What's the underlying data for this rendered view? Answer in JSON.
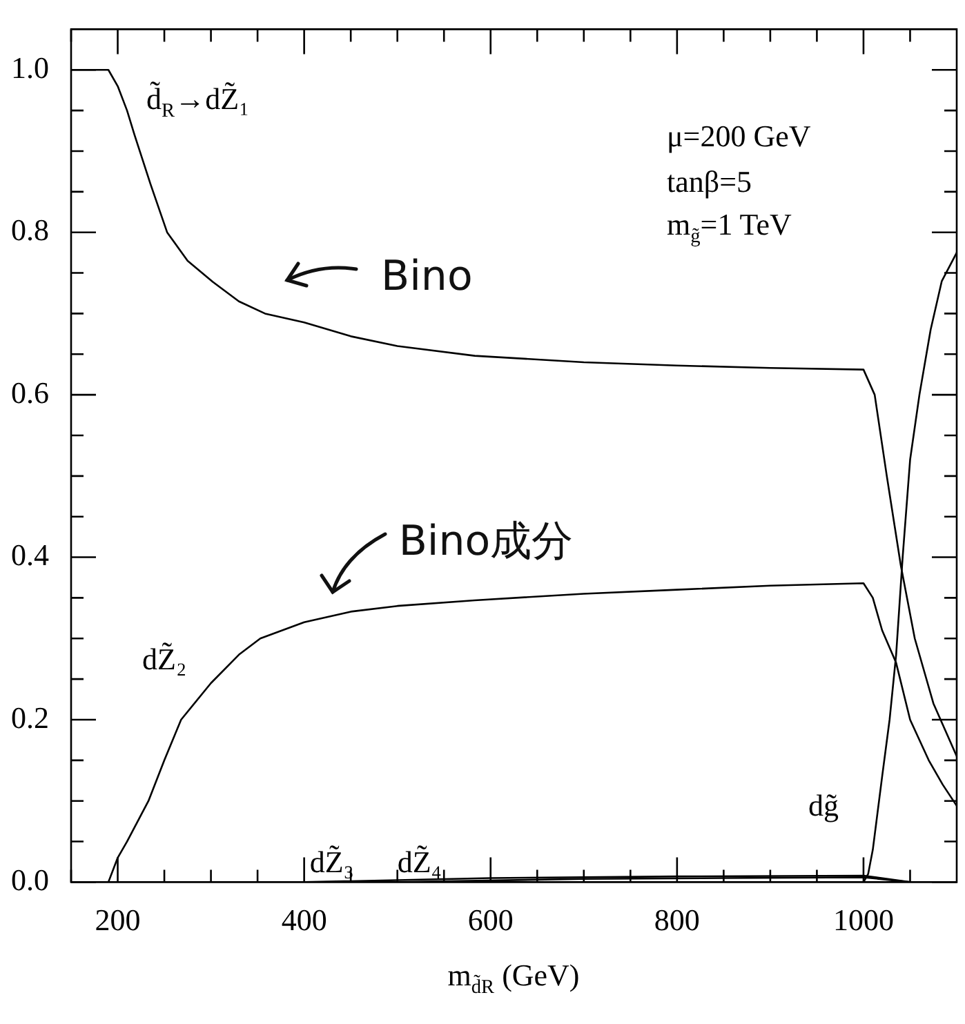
{
  "chart_data": {
    "type": "line",
    "xlabel": "m$_{d̃R}$ (GeV)",
    "xlim": [
      150,
      1100
    ],
    "ylim": [
      0,
      1.05
    ],
    "xticks": [
      {
        "value": 150,
        "label": null
      },
      200,
      {
        "value": 250,
        "label": null
      },
      {
        "value": 300,
        "label": null
      },
      {
        "value": 350,
        "label": null
      },
      400,
      {
        "value": 450,
        "label": null
      },
      {
        "value": 500,
        "label": null
      },
      {
        "value": 550,
        "label": null
      },
      600,
      {
        "value": 650,
        "label": null
      },
      {
        "value": 700,
        "label": null
      },
      {
        "value": 750,
        "label": null
      },
      800,
      {
        "value": 850,
        "label": null
      },
      {
        "value": 900,
        "label": null
      },
      {
        "value": 950,
        "label": null
      },
      1000,
      {
        "value": 1050,
        "label": null
      }
    ],
    "yticks": [
      {
        "value": 0,
        "label": "0.0"
      },
      {
        "value": 0.05,
        "label": null
      },
      {
        "value": 0.1,
        "label": null
      },
      {
        "value": 0.15,
        "label": null
      },
      0.2,
      {
        "value": 0.25,
        "label": null
      },
      {
        "value": 0.3,
        "label": null
      },
      {
        "value": 0.35,
        "label": null
      },
      0.4,
      {
        "value": 0.45,
        "label": null
      },
      {
        "value": 0.5,
        "label": null
      },
      {
        "value": 0.55,
        "label": null
      },
      0.6,
      {
        "value": 0.65,
        "label": null
      },
      {
        "value": 0.7,
        "label": null
      },
      {
        "value": 0.75,
        "label": null
      },
      0.8,
      {
        "value": 0.85,
        "label": null
      },
      {
        "value": 0.9,
        "label": null
      },
      {
        "value": 0.95,
        "label": null
      },
      {
        "value": 1,
        "label": "1.0"
      }
    ],
    "grid": false,
    "marker": "none",
    "line_style": "solid",
    "series": [
      {
        "name": "d̃$_{R}$→dZ̃₁",
        "color": "#000000",
        "x": [
          150,
          190,
          200,
          210,
          218,
          235,
          253,
          275,
          302,
          330,
          358,
          400,
          450,
          500,
          583,
          700,
          800,
          900,
          1000,
          1012,
          1025,
          1040,
          1055,
          1075,
          1100
        ],
        "values": [
          1,
          1,
          0.98,
          0.95,
          0.92,
          0.86,
          0.8,
          0.765,
          0.739,
          0.715,
          0.7,
          0.689,
          0.672,
          0.66,
          0.648,
          0.64,
          0.636,
          0.633,
          0.631,
          0.6,
          0.5,
          0.39,
          0.3,
          0.22,
          0.155
        ]
      },
      {
        "name": "dZ̃₂",
        "color": "#000000",
        "x": [
          190,
          200,
          210,
          233,
          250,
          268,
          300,
          330,
          353,
          400,
          450,
          500,
          583,
          700,
          800,
          900,
          1000,
          1010,
          1020,
          1035,
          1050,
          1070,
          1085,
          1100
        ],
        "values": [
          0,
          0.03,
          0.05,
          0.1,
          0.15,
          0.2,
          0.245,
          0.28,
          0.3,
          0.32,
          0.333,
          0.34,
          0.347,
          0.355,
          0.36,
          0.365,
          0.368,
          0.35,
          0.31,
          0.27,
          0.2,
          0.15,
          0.12,
          0.094
        ]
      },
      {
        "name": "dZ̃₃",
        "color": "#000000",
        "x": [
          400,
          600,
          800,
          1000,
          1050
        ],
        "values": [
          0,
          0.005,
          0.007,
          0.008,
          0
        ]
      },
      {
        "name": "dZ̃₄",
        "color": "#000000",
        "x": [
          500,
          700,
          850,
          1000,
          1050
        ],
        "values": [
          0,
          0.004,
          0.005,
          0.006,
          0
        ]
      },
      {
        "name": "dg̃",
        "color": "#000000",
        "x": [
          1000,
          1005,
          1010,
          1020,
          1028,
          1035,
          1042,
          1050,
          1060,
          1072,
          1084,
          1100
        ],
        "values": [
          0,
          0.01,
          0.04,
          0.13,
          0.2,
          0.28,
          0.4,
          0.52,
          0.6,
          0.68,
          0.74,
          0.775
        ]
      }
    ],
    "annotations": [
      "μ=200 GeV",
      "tanβ=5",
      "m$_{g̃}$=1 TeV",
      "Bino",
      "Bino成分"
    ]
  }
}
